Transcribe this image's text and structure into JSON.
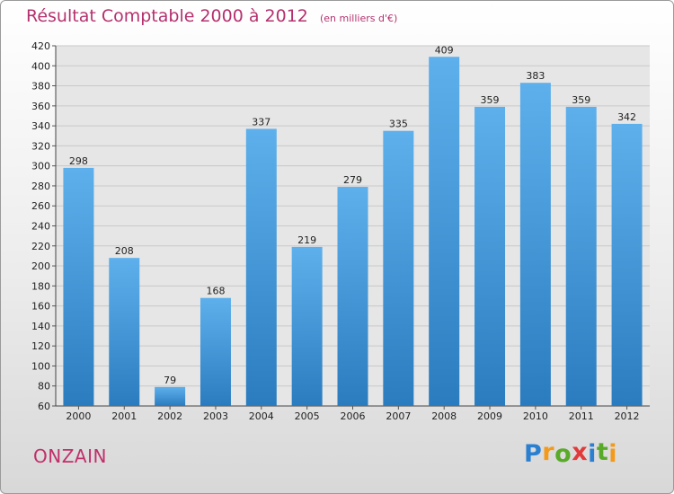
{
  "header": {
    "title": "Résultat Comptable 2000 à 2012",
    "unit": "(en milliers d'€)"
  },
  "footer": {
    "location": "ONZAIN",
    "logo": {
      "text": "Proxiti",
      "letters": [
        "P",
        "r",
        "o",
        "x",
        "i",
        "t",
        "i"
      ],
      "colors": [
        "#2b7fd0",
        "#f39a1a",
        "#5aaa2a",
        "#e23a3a",
        "#2b7fd0",
        "#5aaa2a",
        "#f39a1a"
      ]
    }
  },
  "colors": {
    "title": "#b5316e",
    "bar_top": "#5eb0ec",
    "bar_bottom": "#2a7cbf"
  },
  "chart_data": {
    "type": "bar",
    "categories": [
      "2000",
      "2001",
      "2002",
      "2003",
      "2004",
      "2005",
      "2006",
      "2007",
      "2008",
      "2009",
      "2010",
      "2011",
      "2012"
    ],
    "values": [
      298,
      208,
      79,
      168,
      337,
      219,
      279,
      335,
      409,
      359,
      383,
      359,
      342
    ],
    "ylim": [
      60,
      420
    ],
    "yticks": [
      60,
      80,
      100,
      120,
      140,
      160,
      180,
      200,
      220,
      240,
      260,
      280,
      300,
      320,
      340,
      360,
      380,
      400,
      420
    ],
    "grid": true
  }
}
